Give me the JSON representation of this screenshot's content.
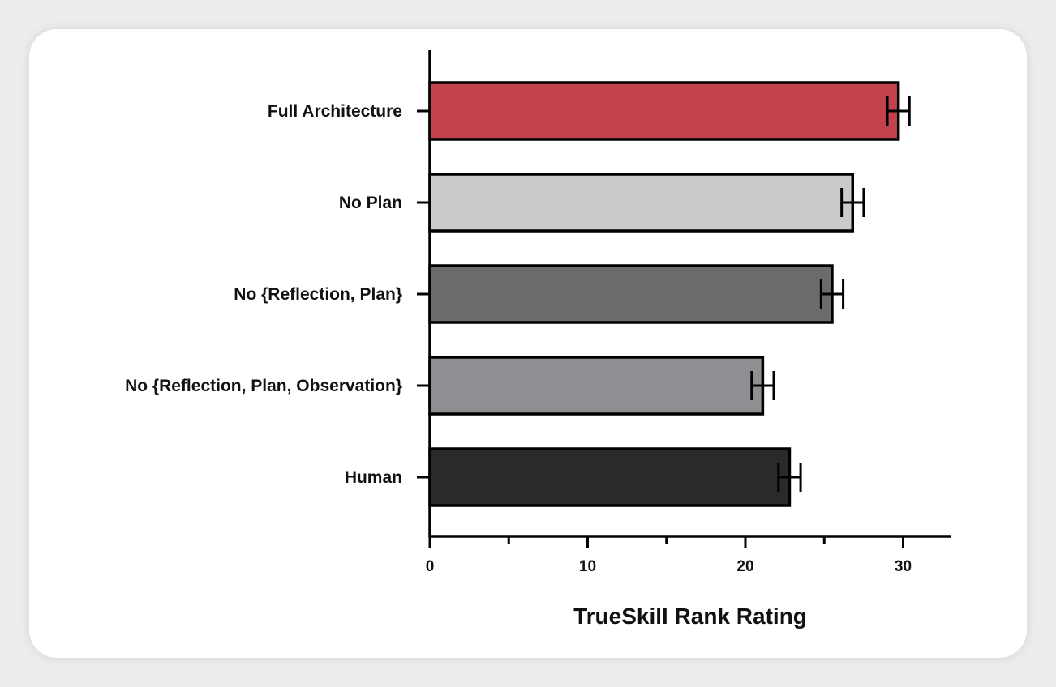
{
  "chart_data": {
    "type": "bar",
    "orientation": "horizontal",
    "title": "",
    "xlabel": "TrueSkill Rank Rating",
    "ylabel": "",
    "xlim": [
      0,
      32.5
    ],
    "x_ticks": [
      0,
      10,
      20,
      30
    ],
    "x_minor_ticks": [
      5,
      15,
      25
    ],
    "grid": false,
    "legend": "none",
    "categories": [
      "Full Architecture",
      "No Plan",
      "No {Reflection, Plan}",
      "No {Reflection, Plan, Observation}",
      "Human"
    ],
    "values": [
      29.7,
      26.8,
      25.5,
      21.1,
      22.8
    ],
    "error": [
      0.7,
      0.7,
      0.7,
      0.7,
      0.7
    ],
    "colors": [
      "#c2434b",
      "#cbcbcb",
      "#6b6b6b",
      "#8f8f93",
      "#2a2a2a"
    ]
  }
}
